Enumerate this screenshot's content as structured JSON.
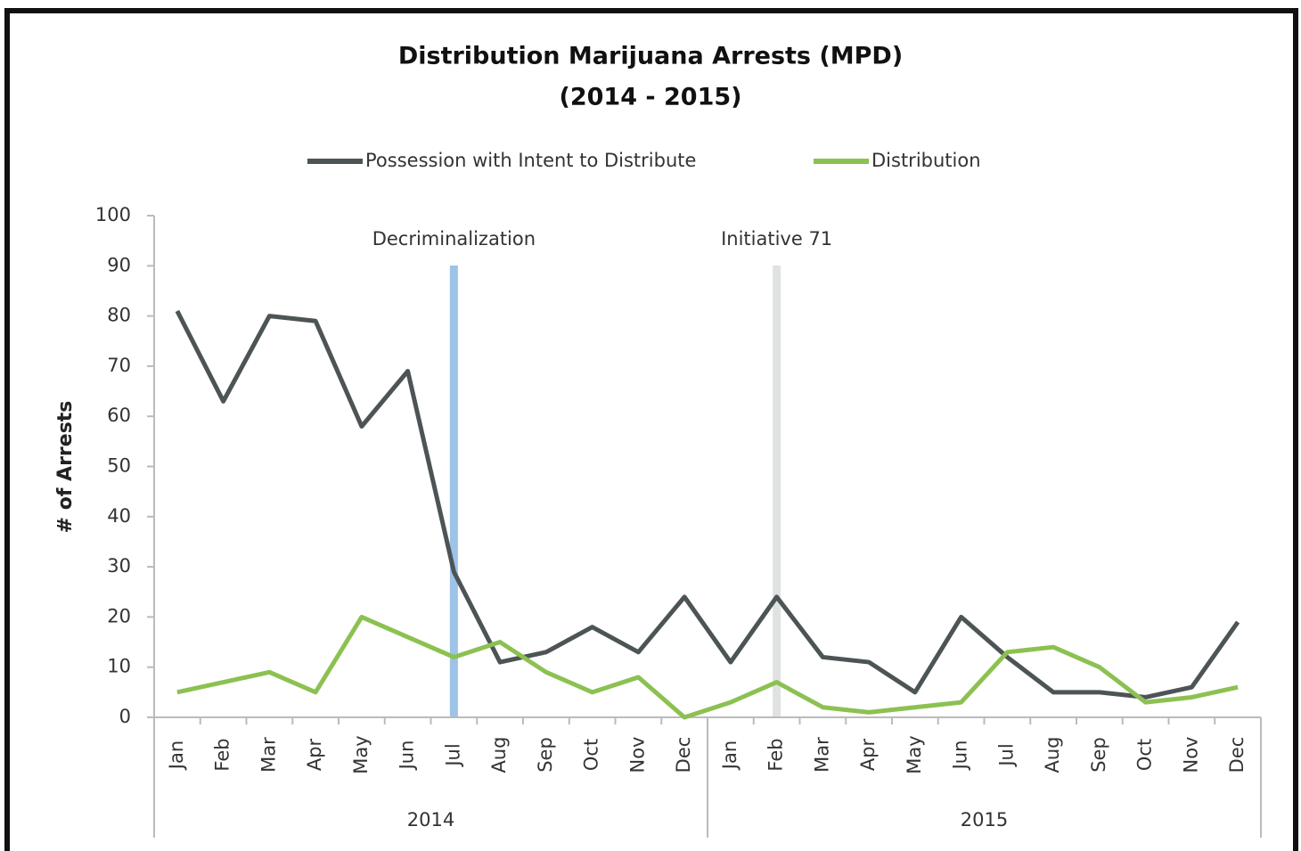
{
  "chart_data": {
    "type": "line",
    "title": "Distribution Marijuana Arrests (MPD)",
    "subtitle": "(2014 - 2015)",
    "y_label": "# of Arrests",
    "categories": [
      "Jan",
      "Feb",
      "Mar",
      "Apr",
      "May",
      "Jun",
      "Jul",
      "Aug",
      "Sep",
      "Oct",
      "Nov",
      "Dec",
      "Jan",
      "Feb",
      "Mar",
      "Apr",
      "May",
      "Jun",
      "Jul",
      "Aug",
      "Sep",
      "Oct",
      "Nov",
      "Dec"
    ],
    "groups": [
      "2014",
      "2015"
    ],
    "series": [
      {
        "name": "Possession with Intent to Distribute",
        "color": "#4d5456",
        "values": [
          81,
          63,
          80,
          79,
          58,
          69,
          29,
          11,
          13,
          18,
          13,
          24,
          11,
          24,
          12,
          11,
          5,
          20,
          12,
          5,
          5,
          4,
          6,
          19
        ]
      },
      {
        "name": "Distribution",
        "color": "#8cc152",
        "values": [
          5,
          7,
          9,
          5,
          20,
          16,
          12,
          15,
          9,
          5,
          8,
          0,
          3,
          7,
          2,
          1,
          2,
          3,
          13,
          14,
          10,
          3,
          4,
          6
        ]
      }
    ],
    "annotations": [
      {
        "label": "Decriminalization",
        "x_index": 6,
        "color": "#9dc3e6"
      },
      {
        "label": "Initiative 71",
        "x_index": 13,
        "color": "#e0e2e2"
      }
    ],
    "ylim": [
      0,
      100
    ],
    "yticks": [
      0,
      10,
      20,
      30,
      40,
      50,
      60,
      70,
      80,
      90,
      100
    ],
    "grid": false,
    "legend": "top"
  }
}
